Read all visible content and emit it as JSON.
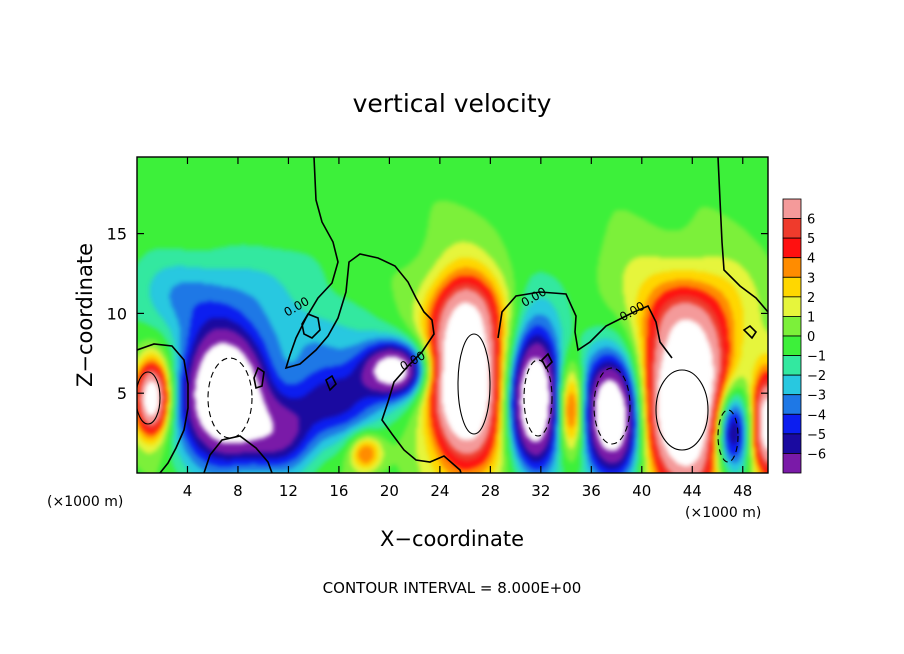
{
  "chart_data": {
    "type": "heatmap",
    "title": "vertical velocity",
    "xlabel": "X−coordinate",
    "ylabel": "Z−coordinate",
    "x_unit_left": "(×1000 m)",
    "x_unit_right": "(×1000 m)",
    "footer": "CONTOUR INTERVAL = 8.000E+00",
    "xlim": [
      0,
      50
    ],
    "ylim": [
      0,
      19.8
    ],
    "x_ticks": [
      4,
      8,
      12,
      16,
      20,
      24,
      28,
      32,
      36,
      40,
      44,
      48
    ],
    "x_tick_labels": [
      "4",
      "8",
      "12",
      "16",
      "20",
      "24",
      "28",
      "32",
      "36",
      "40",
      "44",
      "48"
    ],
    "y_ticks": [
      5,
      10,
      15
    ],
    "y_tick_labels": [
      "5",
      "10",
      "15"
    ],
    "contour_labels": [
      {
        "text": "0.00",
        "x": 12.8,
        "y": 10.2
      },
      {
        "text": "0.00",
        "x": 22.0,
        "y": 6.8
      },
      {
        "text": "0.00",
        "x": 31.6,
        "y": 10.8
      },
      {
        "text": "0.00",
        "x": 39.4,
        "y": 9.9
      }
    ],
    "colorbar": {
      "levels": [
        "6",
        "5",
        "4",
        "3",
        "2",
        "1",
        "0",
        "−1",
        "−2",
        "−3",
        "−4",
        "−5",
        "−6"
      ],
      "colors": [
        "#f49a9a",
        "#ef3b2c",
        "#ff1010",
        "#ff8c00",
        "#ffd700",
        "#e6f53c",
        "#7cf03a",
        "#3df03a",
        "#33e8a0",
        "#28c8e0",
        "#1e78e6",
        "#0c1ef0",
        "#1a0aa0",
        "#7a1aa8"
      ]
    },
    "cells": [
      {
        "x": 1.2,
        "z": 4.5,
        "w": -1,
        "a": 2.0,
        "b": 3.8
      },
      {
        "x": 1.5,
        "z": 4.8,
        "w": 12,
        "a": 1.4,
        "b": 2.4
      },
      {
        "x": 7.2,
        "z": 5.0,
        "w": -14,
        "a": 3.2,
        "b": 3.8
      },
      {
        "x": 11.8,
        "z": 2.5,
        "w": -5,
        "a": 2.8,
        "b": 2.2
      },
      {
        "x": 16.0,
        "z": 4.8,
        "w": -5,
        "a": 4.2,
        "b": 2.4
      },
      {
        "x": 20.6,
        "z": 6.6,
        "w": -9,
        "a": 2.6,
        "b": 1.6
      },
      {
        "x": 18.2,
        "z": 1.5,
        "w": 5,
        "a": 1.3,
        "b": 1.2
      },
      {
        "x": 26.0,
        "z": 6.0,
        "w": 14,
        "a": 2.8,
        "b": 5.2
      },
      {
        "x": 31.4,
        "z": 4.8,
        "w": -12,
        "a": 2.0,
        "b": 4.0
      },
      {
        "x": 34.3,
        "z": 4.2,
        "w": 7,
        "a": 1.1,
        "b": 2.8
      },
      {
        "x": 37.6,
        "z": 3.8,
        "w": -12,
        "a": 2.4,
        "b": 3.8
      },
      {
        "x": 43.3,
        "z": 4.6,
        "w": 14,
        "a": 3.6,
        "b": 5.2
      },
      {
        "x": 46.8,
        "z": 3.0,
        "w": -10,
        "a": 1.5,
        "b": 2.8
      },
      {
        "x": 49.7,
        "z": 3.3,
        "w": 10,
        "a": 1.2,
        "b": 3.2
      },
      {
        "x": 26.0,
        "z": 10.5,
        "w": 2,
        "a": 3.0,
        "b": 2.0
      },
      {
        "x": 43.0,
        "z": 10.0,
        "w": 2.5,
        "a": 4.0,
        "b": 2.5
      },
      {
        "x": 6.0,
        "z": 10.8,
        "w": -1.8,
        "a": 5.0,
        "b": 2.6
      },
      {
        "x": 12.0,
        "z": 12.0,
        "w": -1.2,
        "a": 4.0,
        "b": 3.0
      },
      {
        "x": 3.0,
        "z": 11.5,
        "w": -1.3,
        "a": 4.0,
        "b": 2.5
      },
      {
        "x": 15.0,
        "z": 8.5,
        "w": -2,
        "a": 4.0,
        "b": 2.0
      },
      {
        "x": 33.0,
        "z": 11.0,
        "w": -0.8,
        "a": 3.0,
        "b": 3.0
      },
      {
        "x": 38.5,
        "z": 12.5,
        "w": 0.9,
        "a": 2.5,
        "b": 2.5
      },
      {
        "x": 47.0,
        "z": 11.5,
        "w": 0.8,
        "a": 3.0,
        "b": 3.0
      }
    ]
  }
}
